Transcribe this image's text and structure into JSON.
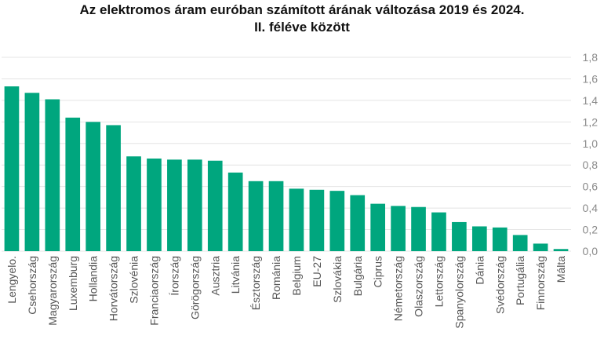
{
  "chart_data": {
    "type": "bar",
    "title_line1": "Az elektromos áram euróban számított árának változása 2019 és 2024.",
    "title_line2": "II. féléve között",
    "categories": [
      "Lengyelo.",
      "Csehország",
      "Magyarország",
      "Luxemburg",
      "Hollandia",
      "Horvátország",
      "Szlovénia",
      "Franciaország",
      "Írország",
      "Görögország",
      "Ausztria",
      "Litvánia",
      "Észtország",
      "Románia",
      "Belgium",
      "EU-27",
      "Szlovákia",
      "Bulgária",
      "Ciprus",
      "Németország",
      "Olaszország",
      "Lettország",
      "Spanyolország",
      "Dánia",
      "Svédország",
      "Portugália",
      "Finnország",
      "Málta"
    ],
    "values": [
      1.53,
      1.47,
      1.41,
      1.24,
      1.2,
      1.17,
      0.88,
      0.86,
      0.85,
      0.85,
      0.84,
      0.73,
      0.65,
      0.65,
      0.58,
      0.57,
      0.56,
      0.52,
      0.44,
      0.42,
      0.41,
      0.36,
      0.27,
      0.23,
      0.22,
      0.15,
      0.07,
      0.02
    ],
    "yticks": [
      "0,0",
      "0,2",
      "0,4",
      "0,6",
      "0,8",
      "1,0",
      "1,2",
      "1,4",
      "1,6",
      "1,8"
    ],
    "ylim": [
      0,
      1.8
    ],
    "bar_color": "#00a67e",
    "grid_color": "#e4e4e4",
    "tick_color": "#8a8a8a",
    "label_color": "#555555",
    "grid": true,
    "y_axis_position": "right"
  }
}
